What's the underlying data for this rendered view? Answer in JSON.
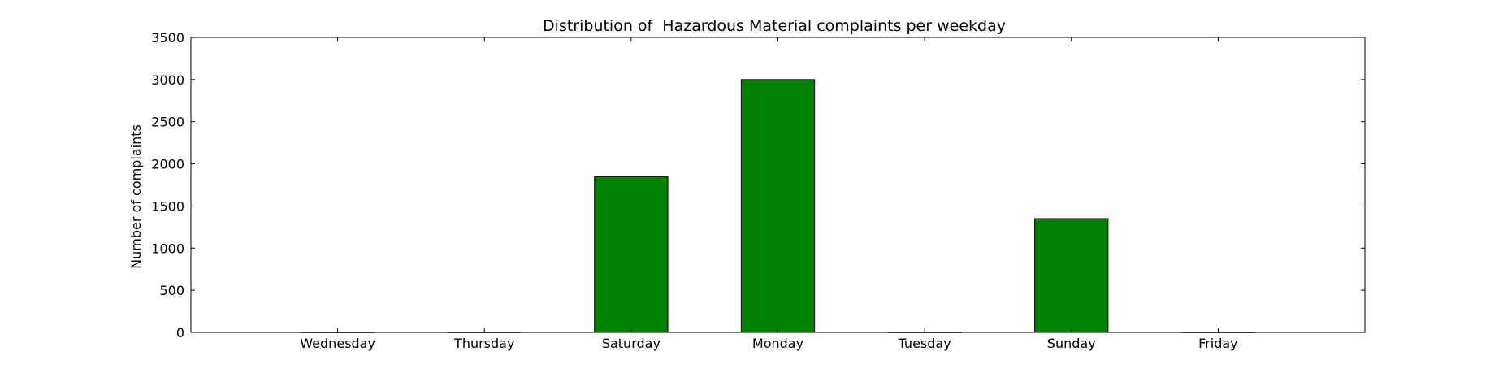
{
  "chart_data": {
    "type": "bar",
    "title": "Distribution of  Hazardous Material complaints per weekday",
    "xlabel": "",
    "ylabel": "Number of complaints",
    "categories": [
      "Wednesday",
      "Thursday",
      "Saturday",
      "Monday",
      "Tuesday",
      "Sunday",
      "Friday"
    ],
    "values": [
      2,
      2,
      1850,
      3000,
      2,
      1350,
      2
    ],
    "ylim": [
      0,
      3500
    ],
    "yticks": [
      0,
      500,
      1000,
      1500,
      2000,
      2500,
      3000,
      3500
    ],
    "xlim": [
      -1,
      7
    ],
    "bar_width": 0.5,
    "grid": false,
    "colors": {
      "bar_fill": "#008000",
      "bar_edge": "#000000",
      "axis": "#000000",
      "background": "#ffffff"
    }
  }
}
